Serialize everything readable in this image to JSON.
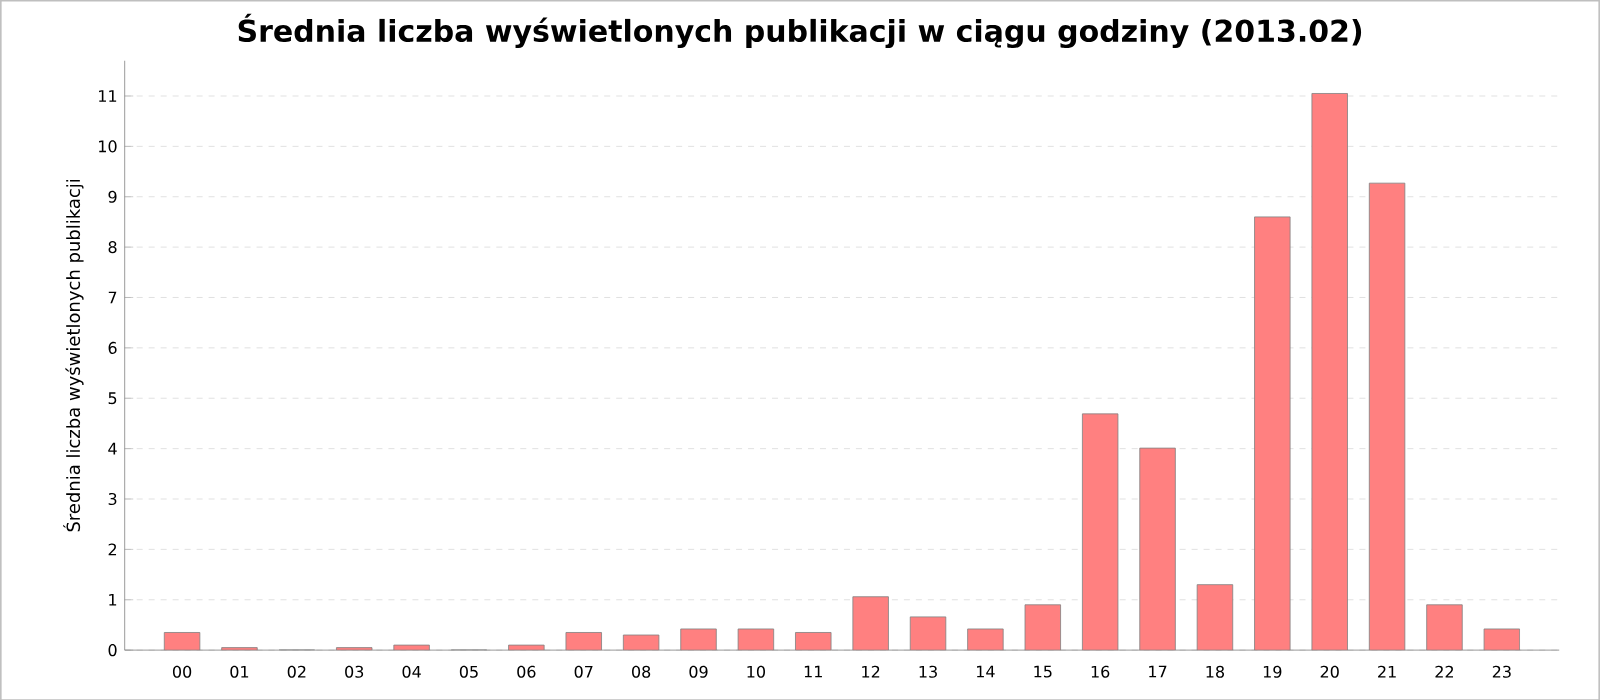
{
  "chart_data": {
    "type": "bar",
    "title": "Średnia liczba wyświetlonych publikacji w ciągu godziny (2013.02)",
    "ylabel": "Średnia liczba wyświetlonych publikacji",
    "categories": [
      "00",
      "01",
      "02",
      "03",
      "04",
      "05",
      "06",
      "07",
      "08",
      "09",
      "10",
      "11",
      "12",
      "13",
      "14",
      "15",
      "16",
      "17",
      "18",
      "19",
      "20",
      "21",
      "22",
      "23"
    ],
    "values": [
      0.35,
      0.05,
      0,
      0.05,
      0.1,
      0,
      0.1,
      0.35,
      0.3,
      0.42,
      0.42,
      0.35,
      1.06,
      0.66,
      0.42,
      0.9,
      4.69,
      4.01,
      1.3,
      8.6,
      11.05,
      9.27,
      0.9,
      0.42
    ],
    "color": "#ff8080",
    "ylim": [
      0,
      11.7
    ],
    "yticks": [
      0,
      1,
      2,
      3,
      4,
      5,
      6,
      7,
      8,
      9,
      10,
      11
    ],
    "grid": "y"
  }
}
